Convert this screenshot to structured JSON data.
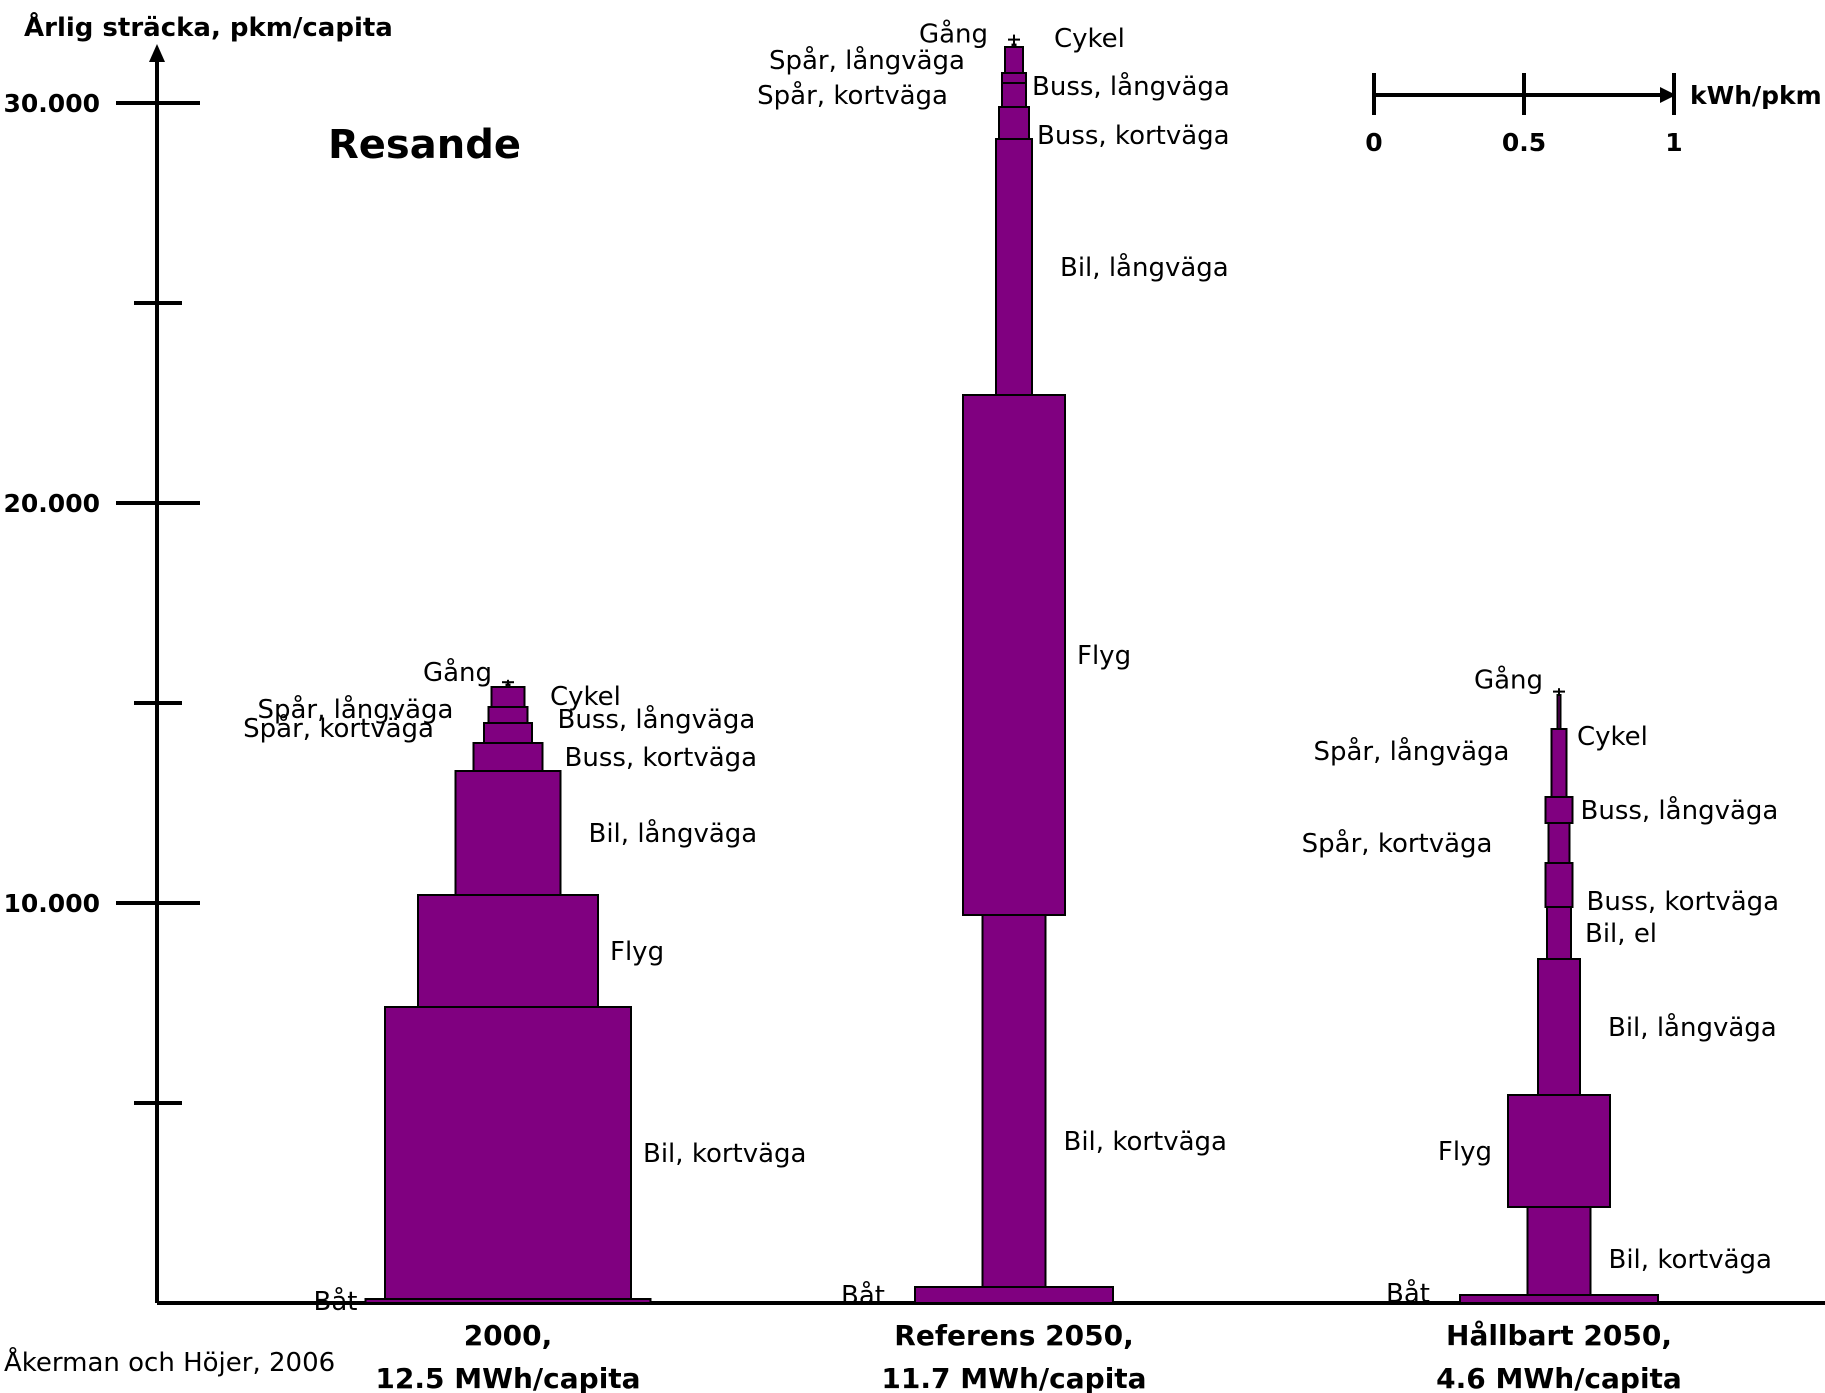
{
  "chart_data": {
    "type": "bar",
    "title": "Resande",
    "ylabel": "Årlig sträcka, pkm/capita",
    "ylim": [
      0,
      31000
    ],
    "y_ticks": [
      {
        "value": 0,
        "label": ""
      },
      {
        "value": 5000,
        "label": ""
      },
      {
        "value": 10000,
        "label": "10.000"
      },
      {
        "value": 15000,
        "label": ""
      },
      {
        "value": 20000,
        "label": ""
      },
      {
        "value": 25000,
        "label": ""
      },
      {
        "value": 30000,
        "label": "30.000"
      }
    ],
    "y_tick_labels_extra": [
      {
        "value": 20000,
        "label": "20.000"
      }
    ],
    "width_scale": {
      "label": "kWh/pkm",
      "ticks": [
        {
          "value": 0,
          "label": "0"
        },
        {
          "value": 0.5,
          "label": "0.5"
        },
        {
          "value": 1,
          "label": "1"
        }
      ]
    },
    "source": "Åkerman och Höjer, 2006",
    "title_color": "#7b0a78",
    "bar_color": "#800080",
    "groups": [
      {
        "name": "2000,",
        "subtitle": "12.5 MWh/capita",
        "segments": [
          {
            "mode": "Båt",
            "distance": 100,
            "intensity": 0.95
          },
          {
            "mode": "Bil, kortväga",
            "distance": 7300,
            "intensity": 0.82
          },
          {
            "mode": "Flyg",
            "distance": 2800,
            "intensity": 0.6
          },
          {
            "mode": "Bil, långväga",
            "distance": 3100,
            "intensity": 0.35
          },
          {
            "mode": "Buss, kortväga",
            "distance": 700,
            "intensity": 0.23
          },
          {
            "mode": "Spår, kortväga",
            "distance": 500,
            "intensity": 0.16
          },
          {
            "mode": "Buss, långväga",
            "distance": 400,
            "intensity": 0.13
          },
          {
            "mode": "Spår, långväga",
            "distance": 500,
            "intensity": 0.11
          },
          {
            "mode": "Cykel",
            "distance": 60,
            "intensity": 0.01
          },
          {
            "mode": "Gång",
            "distance": 120,
            "intensity": 0.0
          }
        ]
      },
      {
        "name": "Referens 2050,",
        "subtitle": "11.7 MWh/capita",
        "segments": [
          {
            "mode": "Båt",
            "distance": 400,
            "intensity": 0.66
          },
          {
            "mode": "Bil, kortväga",
            "distance": 9300,
            "intensity": 0.21
          },
          {
            "mode": "Flyg",
            "distance": 13000,
            "intensity": 0.34
          },
          {
            "mode": "Bil, långväga",
            "distance": 6400,
            "intensity": 0.12
          },
          {
            "mode": "Buss, kortväga",
            "distance": 800,
            "intensity": 0.1
          },
          {
            "mode": "Spår, kortväga",
            "distance": 600,
            "intensity": 0.08
          },
          {
            "mode": "Buss, långväga",
            "distance": 250,
            "intensity": 0.08
          },
          {
            "mode": "Spår, långväga",
            "distance": 650,
            "intensity": 0.06
          },
          {
            "mode": "Cykel",
            "distance": 60,
            "intensity": 0.01
          },
          {
            "mode": "Gång",
            "distance": 250,
            "intensity": 0.0
          }
        ]
      },
      {
        "name": "Hållbart 2050,",
        "subtitle": "4.6 MWh/capita",
        "segments": [
          {
            "mode": "Båt",
            "distance": 200,
            "intensity": 0.66
          },
          {
            "mode": "Bil, kortväga",
            "distance": 2200,
            "intensity": 0.21
          },
          {
            "mode": "Flyg",
            "distance": 2800,
            "intensity": 0.34
          },
          {
            "mode": "Bil, långväga",
            "distance": 3400,
            "intensity": 0.14
          },
          {
            "mode": "Bil, el",
            "distance": 1300,
            "intensity": 0.08
          },
          {
            "mode": "Buss, kortväga",
            "distance": 1100,
            "intensity": 0.09
          },
          {
            "mode": "Spår, kortväga",
            "distance": 1000,
            "intensity": 0.07
          },
          {
            "mode": "Buss, långväga",
            "distance": 650,
            "intensity": 0.09
          },
          {
            "mode": "Spår, långväga",
            "distance": 1700,
            "intensity": 0.05
          },
          {
            "mode": "Cykel",
            "distance": 850,
            "intensity": 0.01
          },
          {
            "mode": "Gång",
            "distance": 170,
            "intensity": 0.0
          }
        ]
      }
    ]
  }
}
